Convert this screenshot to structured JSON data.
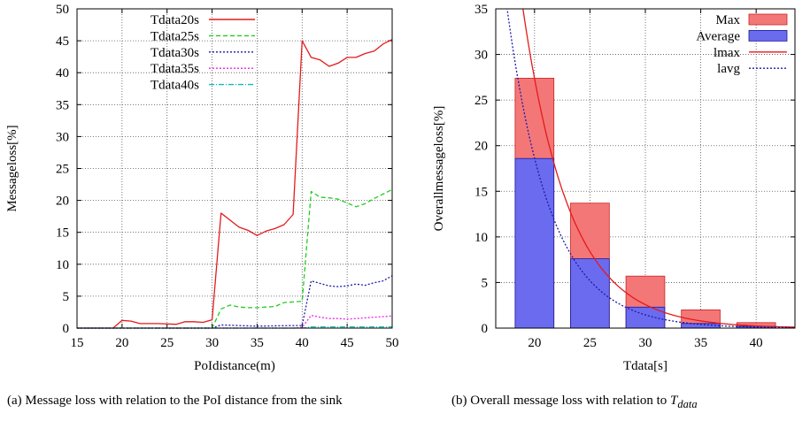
{
  "captions": {
    "a": "(a) Message loss with relation to the PoI distance from the sink",
    "b_prefix": "(b) Overall message loss with relation to ",
    "b_symbol": "T",
    "b_subscript": "data"
  },
  "chart_data": [
    {
      "type": "line",
      "xlabel": "PoIdistance(m)",
      "ylabel": "Messageloss[%]",
      "xlim": [
        15,
        50
      ],
      "ylim": [
        0,
        50
      ],
      "xticks": [
        15,
        20,
        25,
        30,
        35,
        40,
        45,
        50
      ],
      "yticks": [
        0,
        5,
        10,
        15,
        20,
        25,
        30,
        35,
        40,
        45,
        50
      ],
      "grid": true,
      "legend": "top-left",
      "series": [
        {
          "name": "Tdata20s",
          "color": "#e41a1c",
          "dash": "",
          "x": [
            15,
            19,
            20,
            21,
            22,
            24,
            26,
            27,
            28,
            29,
            30,
            31,
            33,
            34,
            35,
            36,
            37,
            38,
            39,
            40,
            41,
            42,
            43,
            44,
            45,
            46,
            47,
            48,
            49,
            50
          ],
          "y": [
            0,
            0,
            1.2,
            1.1,
            0.7,
            0.7,
            0.6,
            1.0,
            1.0,
            0.9,
            1.3,
            18.0,
            15.8,
            15.3,
            14.5,
            15.2,
            15.6,
            16.2,
            17.8,
            45.0,
            42.4,
            42.0,
            41.0,
            41.5,
            42.4,
            42.4,
            43.0,
            43.4,
            44.5,
            45.2
          ]
        },
        {
          "name": "Tdata25s",
          "color": "#22cc22",
          "dash": "5,3",
          "x": [
            15,
            30,
            31,
            32,
            33,
            34,
            35,
            36,
            37,
            38,
            39,
            40,
            41,
            42,
            43,
            44,
            45,
            46,
            47,
            48,
            49,
            50
          ],
          "y": [
            0,
            0,
            3.0,
            3.6,
            3.3,
            3.2,
            3.2,
            3.3,
            3.4,
            4.0,
            4.1,
            4.2,
            21.4,
            20.5,
            20.4,
            20.2,
            19.6,
            19.0,
            19.5,
            20.3,
            21.0,
            21.7
          ]
        },
        {
          "name": "Tdata30s",
          "color": "#1a1aaa",
          "dash": "2,2",
          "x": [
            15,
            30,
            31,
            35,
            39,
            40,
            41,
            42,
            43,
            44,
            45,
            46,
            47,
            48,
            49,
            50
          ],
          "y": [
            0,
            0,
            0.5,
            0.3,
            0.4,
            0.4,
            7.4,
            7.0,
            6.6,
            6.5,
            6.6,
            6.9,
            6.7,
            7.1,
            7.4,
            8.2
          ]
        },
        {
          "name": "Tdata35s",
          "color": "#ee22ee",
          "dash": "2,2",
          "x": [
            15,
            39,
            40,
            41,
            42,
            43,
            44,
            45,
            46,
            47,
            48,
            49,
            50
          ],
          "y": [
            0,
            0,
            0.1,
            2.0,
            1.7,
            1.5,
            1.5,
            1.4,
            1.5,
            1.6,
            1.7,
            1.8,
            1.9
          ]
        },
        {
          "name": "Tdata40s",
          "color": "#11bbbb",
          "dash": "6,2,1,2",
          "x": [
            15,
            40,
            41,
            50
          ],
          "y": [
            0,
            0,
            0.2,
            0.2
          ]
        }
      ]
    },
    {
      "type": "bar",
      "xlabel": "Tdata[s]",
      "ylabel": "Overallmessageloss[%]",
      "xlim": [
        16.5,
        43.5
      ],
      "ylim": [
        0,
        35
      ],
      "xticks": [
        20,
        25,
        30,
        35,
        40
      ],
      "yticks": [
        0,
        5,
        10,
        15,
        20,
        25,
        30,
        35
      ],
      "grid": true,
      "legend": "top-right",
      "categories": [
        20,
        25,
        30,
        35,
        40
      ],
      "bar_width": 3.5,
      "series": [
        {
          "name": "Max",
          "color": "#f47777",
          "edge": "#cc2222",
          "values": [
            27.4,
            13.7,
            5.7,
            2.0,
            0.6
          ]
        },
        {
          "name": "Average",
          "color": "#6b6bf0",
          "edge": "#1a1a99",
          "values": [
            18.6,
            7.6,
            2.3,
            0.5,
            0.2
          ]
        }
      ],
      "curves": [
        {
          "name": "lmax",
          "color": "#e41a1c",
          "dash": "",
          "model": "exp",
          "a": 3086.3,
          "b": -0.2363
        },
        {
          "name": "lavg",
          "color": "#1a1aaa",
          "dash": "2,2",
          "model": "exp",
          "a": 3068.5,
          "b": -0.2552
        }
      ]
    }
  ]
}
